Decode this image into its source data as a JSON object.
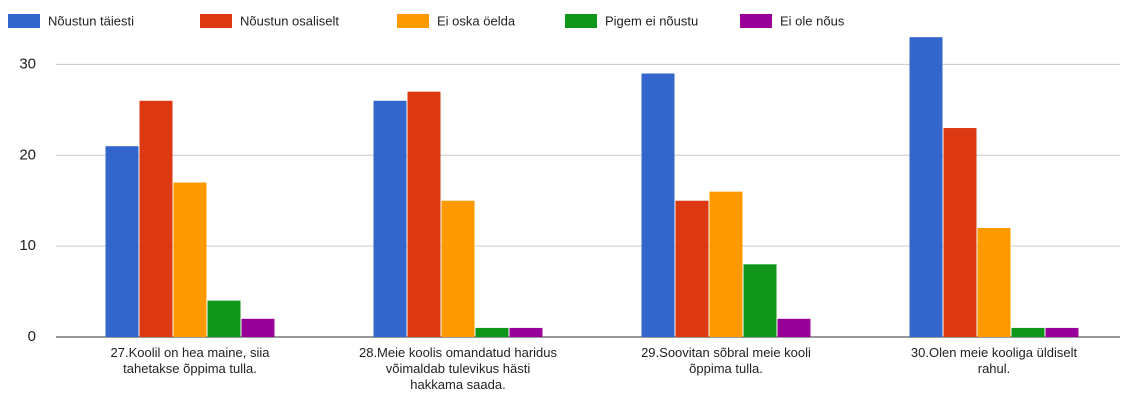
{
  "chart_data": {
    "type": "bar",
    "categories": [
      "27.Koolil on hea maine, siia tahetakse õppima tulla.",
      "28.Meie koolis omandatud haridus võimaldab tulevikus hästi hakkama saada.",
      "29.Soovitan sõbral meie kooli õppima tulla.",
      "30.Olen meie kooliga üldiselt rahul."
    ],
    "series": [
      {
        "name": "Nõustun täiesti",
        "color": "#3366cc",
        "values": [
          21,
          26,
          29,
          33
        ]
      },
      {
        "name": "Nõustun osaliselt",
        "color": "#dc3912",
        "values": [
          26,
          27,
          15,
          23
        ]
      },
      {
        "name": "Ei oska öelda",
        "color": "#ff9900",
        "values": [
          17,
          15,
          16,
          12
        ]
      },
      {
        "name": "Pigem ei nõustu",
        "color": "#109618",
        "values": [
          4,
          1,
          8,
          1
        ]
      },
      {
        "name": "Ei ole nõus",
        "color": "#990099",
        "values": [
          2,
          1,
          2,
          1
        ]
      }
    ],
    "ylim": [
      0,
      35
    ],
    "yticks": [
      0,
      10,
      20,
      30
    ],
    "grid": true,
    "legend": "top"
  }
}
